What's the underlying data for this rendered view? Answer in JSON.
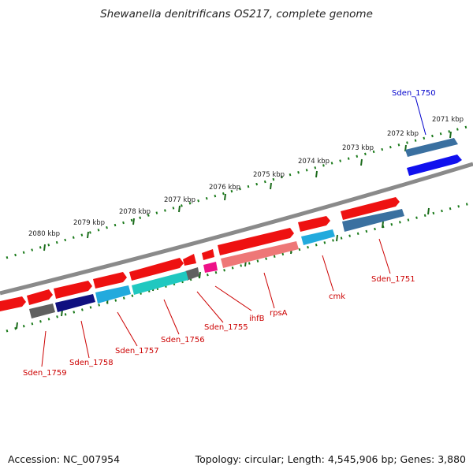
{
  "title": "Shewanella denitrificans OS217, complete genome",
  "footer": {
    "accession": "Accession: NC_007954",
    "summary": "Topology: circular; Length: 4,545,906 bp; Genes: 3,880"
  },
  "colors": {
    "backbone": "#8a8a8a",
    "ruler_dots": "#1a7a1a",
    "ruler_ticks": "#1a6a1a",
    "label_red": "#cc0000",
    "label_blue": "#0000cc",
    "red_gene": "#ee1111",
    "pink_gene": "#ee7777",
    "cyan_gene": "#22aadd",
    "teal_gene": "#20c8c0",
    "steel_gene": "#3a70a0",
    "gray_gene": "#606060",
    "navy_gene": "#101080",
    "blue_gene": "#1010ee",
    "magenta_gene": "#ee1188"
  },
  "ruler": {
    "tick_labels": [
      "2080 kbp",
      "2079 kbp",
      "2078 kbp",
      "2077 kbp",
      "2076 kbp",
      "2075 kbp",
      "2074 kbp",
      "2073 kbp",
      "2072 kbp",
      "2071 kbp"
    ]
  },
  "gene_labels": [
    "Sden_1759",
    "Sden_1758",
    "Sden_1757",
    "Sden_1756",
    "Sden_1755",
    "ihfB",
    "rpsA",
    "cmk",
    "Sden_1751",
    "Sden_1750"
  ]
}
